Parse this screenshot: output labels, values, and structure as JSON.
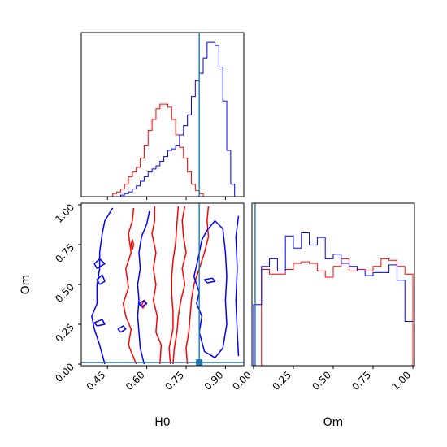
{
  "chart_data": {
    "type": "corner",
    "colors": {
      "series_1": "#ff0000",
      "series_2": "#0000ff",
      "truth": "#1f77b4"
    },
    "truth": {
      "H0": 0.8,
      "Om": 0.01
    },
    "params": {
      "H0": {
        "label": "H0",
        "range": [
          0.35,
          0.97
        ],
        "ticks": [
          {
            "v": 0.45,
            "t": "0.45"
          },
          {
            "v": 0.6,
            "t": "0.60"
          },
          {
            "v": 0.75,
            "t": "0.75"
          },
          {
            "v": 0.9,
            "t": "0.90"
          }
        ]
      },
      "Om": {
        "label": "Om",
        "range": [
          -0.01,
          1.01
        ],
        "ticks": [
          {
            "v": 0.0,
            "t": "0.00"
          },
          {
            "v": 0.25,
            "t": "0.25"
          },
          {
            "v": 0.5,
            "t": "0.50"
          },
          {
            "v": 0.75,
            "t": "0.75"
          },
          {
            "v": 1.0,
            "t": "1.00"
          }
        ]
      }
    },
    "hist_H0": {
      "bin_edges": [
        0.35,
        0.365,
        0.38,
        0.395,
        0.41,
        0.425,
        0.44,
        0.455,
        0.47,
        0.485,
        0.5,
        0.515,
        0.53,
        0.545,
        0.56,
        0.575,
        0.59,
        0.605,
        0.62,
        0.635,
        0.65,
        0.665,
        0.68,
        0.695,
        0.71,
        0.725,
        0.74,
        0.755,
        0.77,
        0.785,
        0.8,
        0.815,
        0.83,
        0.845,
        0.86,
        0.875,
        0.89,
        0.905,
        0.92,
        0.935,
        0.95,
        0.965
      ],
      "series_1": [
        0,
        0,
        0,
        0,
        0,
        0,
        0,
        0,
        0.02,
        0.03,
        0.05,
        0.08,
        0.13,
        0.16,
        0.19,
        0.25,
        0.33,
        0.43,
        0.5,
        0.57,
        0.6,
        0.6,
        0.58,
        0.5,
        0.4,
        0.32,
        0.25,
        0.16,
        0.08,
        0.04,
        0.02,
        0,
        0,
        0,
        0,
        0,
        0,
        0,
        0,
        0,
        0
      ],
      "series_2": [
        0,
        0,
        0,
        0,
        0,
        0,
        0,
        0,
        0,
        0,
        0.01,
        0.02,
        0.03,
        0.05,
        0.07,
        0.1,
        0.13,
        0.16,
        0.18,
        0.2,
        0.23,
        0.26,
        0.3,
        0.31,
        0.33,
        0.4,
        0.46,
        0.53,
        0.65,
        0.75,
        0.8,
        0.9,
        1.0,
        1.0,
        0.98,
        0.84,
        0.62,
        0.3,
        0.08,
        0,
        0
      ]
    },
    "hist_Om": {
      "bin_edges": [
        0.0,
        0.05,
        0.1,
        0.15,
        0.2,
        0.25,
        0.3,
        0.35,
        0.4,
        0.45,
        0.5,
        0.55,
        0.6,
        0.65,
        0.7,
        0.75,
        0.8,
        0.85,
        0.9,
        0.95,
        1.0
      ],
      "series_1": [
        0,
        0.63,
        0.6,
        0.6,
        0.63,
        0.67,
        0.68,
        0.67,
        0.62,
        0.58,
        0.65,
        0.7,
        0.62,
        0.63,
        0.62,
        0.65,
        0.7,
        0.69,
        0.65,
        0.6,
        0
      ],
      "series_2": [
        0.4,
        0.65,
        0.7,
        0.62,
        0.85,
        0.77,
        0.87,
        0.79,
        0.84,
        0.7,
        0.73,
        0.67,
        0.65,
        0.62,
        0.59,
        0.61,
        0.61,
        0.66,
        0.56,
        0.29,
        0.29
      ]
    },
    "contours": {
      "series_1": [
        [
          [
            0.55,
            0.98
          ],
          [
            0.545,
            0.9
          ],
          [
            0.53,
            0.82
          ],
          [
            0.54,
            0.7
          ],
          [
            0.52,
            0.6
          ],
          [
            0.53,
            0.48
          ],
          [
            0.51,
            0.38
          ],
          [
            0.52,
            0.3
          ],
          [
            0.54,
            0.22
          ],
          [
            0.53,
            0.12
          ],
          [
            0.56,
            0.0
          ]
        ],
        [
          [
            0.63,
            0.99
          ],
          [
            0.63,
            0.9
          ],
          [
            0.62,
            0.82
          ],
          [
            0.635,
            0.7
          ],
          [
            0.625,
            0.6
          ],
          [
            0.635,
            0.5
          ],
          [
            0.625,
            0.4
          ],
          [
            0.64,
            0.3
          ],
          [
            0.635,
            0.2
          ],
          [
            0.655,
            0.12
          ],
          [
            0.65,
            0.0
          ]
        ],
        [
          [
            0.72,
            0.99
          ],
          [
            0.715,
            0.88
          ],
          [
            0.71,
            0.76
          ],
          [
            0.7,
            0.65
          ],
          [
            0.695,
            0.55
          ],
          [
            0.695,
            0.44
          ],
          [
            0.7,
            0.33
          ],
          [
            0.7,
            0.22
          ],
          [
            0.685,
            0.1
          ],
          [
            0.69,
            0.0
          ]
        ],
        [
          [
            0.745,
            0.99
          ],
          [
            0.735,
            0.9
          ],
          [
            0.74,
            0.8
          ],
          [
            0.75,
            0.7
          ],
          [
            0.735,
            0.6
          ],
          [
            0.745,
            0.5
          ],
          [
            0.73,
            0.4
          ],
          [
            0.72,
            0.3
          ],
          [
            0.715,
            0.2
          ],
          [
            0.705,
            0.1
          ],
          [
            0.7,
            0.0
          ]
        ],
        [
          [
            0.835,
            0.99
          ],
          [
            0.83,
            0.9
          ],
          [
            0.835,
            0.8
          ],
          [
            0.82,
            0.7
          ],
          [
            0.8,
            0.6
          ],
          [
            0.78,
            0.5
          ],
          [
            0.77,
            0.4
          ],
          [
            0.765,
            0.3
          ],
          [
            0.76,
            0.2
          ],
          [
            0.75,
            0.1
          ],
          [
            0.755,
            0.0
          ]
        ],
        [
          [
            0.545,
            0.72
          ],
          [
            0.55,
            0.75
          ],
          [
            0.545,
            0.78
          ],
          [
            0.54,
            0.75
          ],
          [
            0.545,
            0.72
          ]
        ],
        [
          [
            0.585,
            0.35
          ],
          [
            0.595,
            0.38
          ],
          [
            0.59,
            0.4
          ],
          [
            0.58,
            0.37
          ],
          [
            0.585,
            0.35
          ]
        ]
      ],
      "series_2": [
        [
          [
            0.47,
            0.98
          ],
          [
            0.44,
            0.9
          ],
          [
            0.43,
            0.82
          ],
          [
            0.42,
            0.7
          ],
          [
            0.42,
            0.6
          ],
          [
            0.41,
            0.5
          ],
          [
            0.41,
            0.38
          ],
          [
            0.39,
            0.3
          ],
          [
            0.4,
            0.22
          ],
          [
            0.42,
            0.12
          ],
          [
            0.44,
            0.0
          ]
        ],
        [
          [
            0.61,
            0.96
          ],
          [
            0.6,
            0.88
          ],
          [
            0.58,
            0.8
          ],
          [
            0.57,
            0.7
          ],
          [
            0.575,
            0.6
          ],
          [
            0.565,
            0.5
          ],
          [
            0.57,
            0.4
          ],
          [
            0.565,
            0.3
          ],
          [
            0.57,
            0.2
          ],
          [
            0.575,
            0.1
          ],
          [
            0.59,
            0.0
          ]
        ],
        [
          [
            0.86,
            0.9
          ],
          [
            0.83,
            0.84
          ],
          [
            0.81,
            0.78
          ],
          [
            0.8,
            0.7
          ],
          [
            0.79,
            0.62
          ],
          [
            0.78,
            0.55
          ],
          [
            0.8,
            0.45
          ],
          [
            0.79,
            0.38
          ],
          [
            0.81,
            0.3
          ],
          [
            0.8,
            0.2
          ],
          [
            0.82,
            0.08
          ],
          [
            0.86,
            0.04
          ],
          [
            0.89,
            0.1
          ],
          [
            0.905,
            0.25
          ],
          [
            0.9,
            0.4
          ],
          [
            0.905,
            0.55
          ],
          [
            0.9,
            0.7
          ],
          [
            0.89,
            0.85
          ],
          [
            0.86,
            0.9
          ]
        ],
        [
          [
            0.95,
            0.93
          ],
          [
            0.94,
            0.8
          ],
          [
            0.945,
            0.6
          ],
          [
            0.94,
            0.4
          ],
          [
            0.945,
            0.2
          ],
          [
            0.95,
            0.05
          ]
        ],
        [
          [
            0.41,
            0.6
          ],
          [
            0.44,
            0.63
          ],
          [
            0.42,
            0.66
          ],
          [
            0.4,
            0.63
          ],
          [
            0.41,
            0.6
          ]
        ],
        [
          [
            0.42,
            0.5
          ],
          [
            0.44,
            0.52
          ],
          [
            0.43,
            0.56
          ],
          [
            0.41,
            0.53
          ],
          [
            0.42,
            0.5
          ]
        ],
        [
          [
            0.41,
            0.24
          ],
          [
            0.44,
            0.25
          ],
          [
            0.43,
            0.28
          ],
          [
            0.4,
            0.26
          ],
          [
            0.41,
            0.24
          ]
        ],
        [
          [
            0.83,
            0.51
          ],
          [
            0.86,
            0.52
          ],
          [
            0.85,
            0.54
          ],
          [
            0.82,
            0.53
          ],
          [
            0.83,
            0.51
          ]
        ],
        [
          [
            0.5,
            0.2
          ],
          [
            0.52,
            0.22
          ],
          [
            0.51,
            0.24
          ],
          [
            0.49,
            0.22
          ],
          [
            0.5,
            0.2
          ]
        ],
        [
          [
            0.58,
            0.36
          ],
          [
            0.6,
            0.38
          ],
          [
            0.59,
            0.4
          ],
          [
            0.57,
            0.38
          ],
          [
            0.58,
            0.36
          ]
        ]
      ]
    }
  }
}
